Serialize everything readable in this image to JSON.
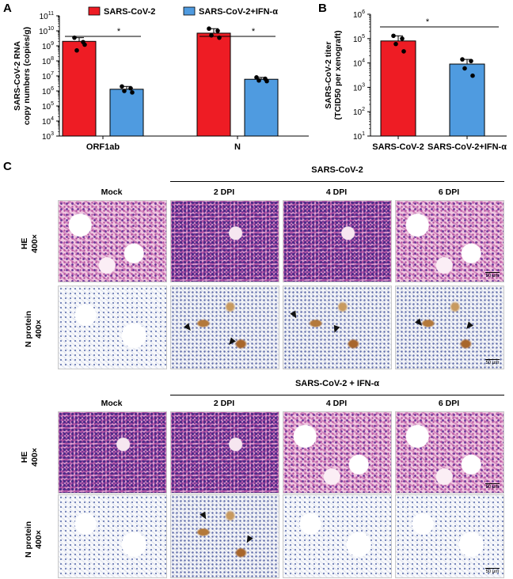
{
  "panel_letters": {
    "a": "A",
    "b": "B",
    "c": "C"
  },
  "significance": "*",
  "chart_data": [
    {
      "type": "bar",
      "panel": "A",
      "categories": [
        "ORF1ab",
        "N"
      ],
      "series": [
        {
          "name": "SARS-CoV-2",
          "color": "#ee1c24",
          "values": [
            2000000000.0,
            7000000000.0
          ],
          "points": [
            [
              3500000000.0,
              1800000000.0,
              500000000.0,
              1200000000.0
            ],
            [
              14000000000.0,
              10000000000.0,
              5000000000.0,
              3500000000.0
            ]
          ]
        },
        {
          "name": "SARS-CoV-2+IFN-α",
          "color": "#4f9be0",
          "values": [
            1300000.0,
            6000000.0
          ],
          "points": [
            [
              2000000.0,
              1500000.0,
              1000000.0,
              800000.0
            ],
            [
              8000000.0,
              6500000.0,
              5000000.0,
              4500000.0
            ]
          ]
        }
      ],
      "ylabel": "SARS-CoV-2 RNA\ncopy numbers (copies/g)",
      "yscale": "log",
      "ylim": [
        1000.0,
        100000000000.0
      ],
      "ytick_exponents": [
        "3",
        "4",
        "5",
        "6",
        "7",
        "8",
        "9",
        "10",
        "11"
      ],
      "ytick_base": "10",
      "legend_position": "top"
    },
    {
      "type": "bar",
      "panel": "B",
      "categories": [
        "SARS-CoV-2",
        "SARS-CoV-2+IFN-α"
      ],
      "series": [
        {
          "name": "",
          "colors": [
            "#ee1c24",
            "#4f9be0"
          ],
          "values": [
            80000.0,
            9000.0
          ],
          "points": [
            [
              130000.0,
              100000.0,
              60000.0,
              30000.0
            ],
            [
              14000.0,
              12000.0,
              6000.0,
              3000.0
            ]
          ]
        }
      ],
      "ylabel": "SARS-CoV-2 titer\n(TCID50 per xenograft)",
      "yscale": "log",
      "ylim": [
        10.0,
        1000000.0
      ],
      "ytick_exponents": [
        "1",
        "2",
        "3",
        "4",
        "5",
        "6"
      ],
      "ytick_base": "10"
    }
  ],
  "panel_c": {
    "groups": [
      {
        "title": "SARS-CoV-2",
        "columns": [
          "Mock",
          "2 DPI",
          "4 DPI",
          "6 DPI"
        ]
      },
      {
        "title": "SARS-CoV-2 + IFN-α",
        "columns": [
          "Mock",
          "2 DPI",
          "4 DPI",
          "6 DPI"
        ]
      }
    ],
    "row_labels": {
      "he": "HE",
      "n": "N protein",
      "mag": "400×"
    },
    "scale_bar": "50 μm"
  }
}
